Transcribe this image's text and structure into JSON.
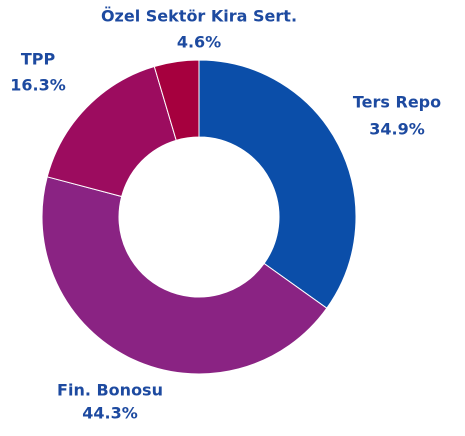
{
  "chart_data": {
    "type": "donut",
    "categories": [
      "Ters Repo",
      "Fin. Bonosu",
      "TPP",
      "Özel Sektör Kira Sert."
    ],
    "values": [
      34.9,
      44.3,
      16.3,
      4.6
    ],
    "value_labels": [
      "34.9%",
      "44.3%",
      "16.3%",
      "4.6%"
    ],
    "colors": [
      "#0b4ea9",
      "#8a2383",
      "#9c0c5f",
      "#a6003e"
    ]
  }
}
